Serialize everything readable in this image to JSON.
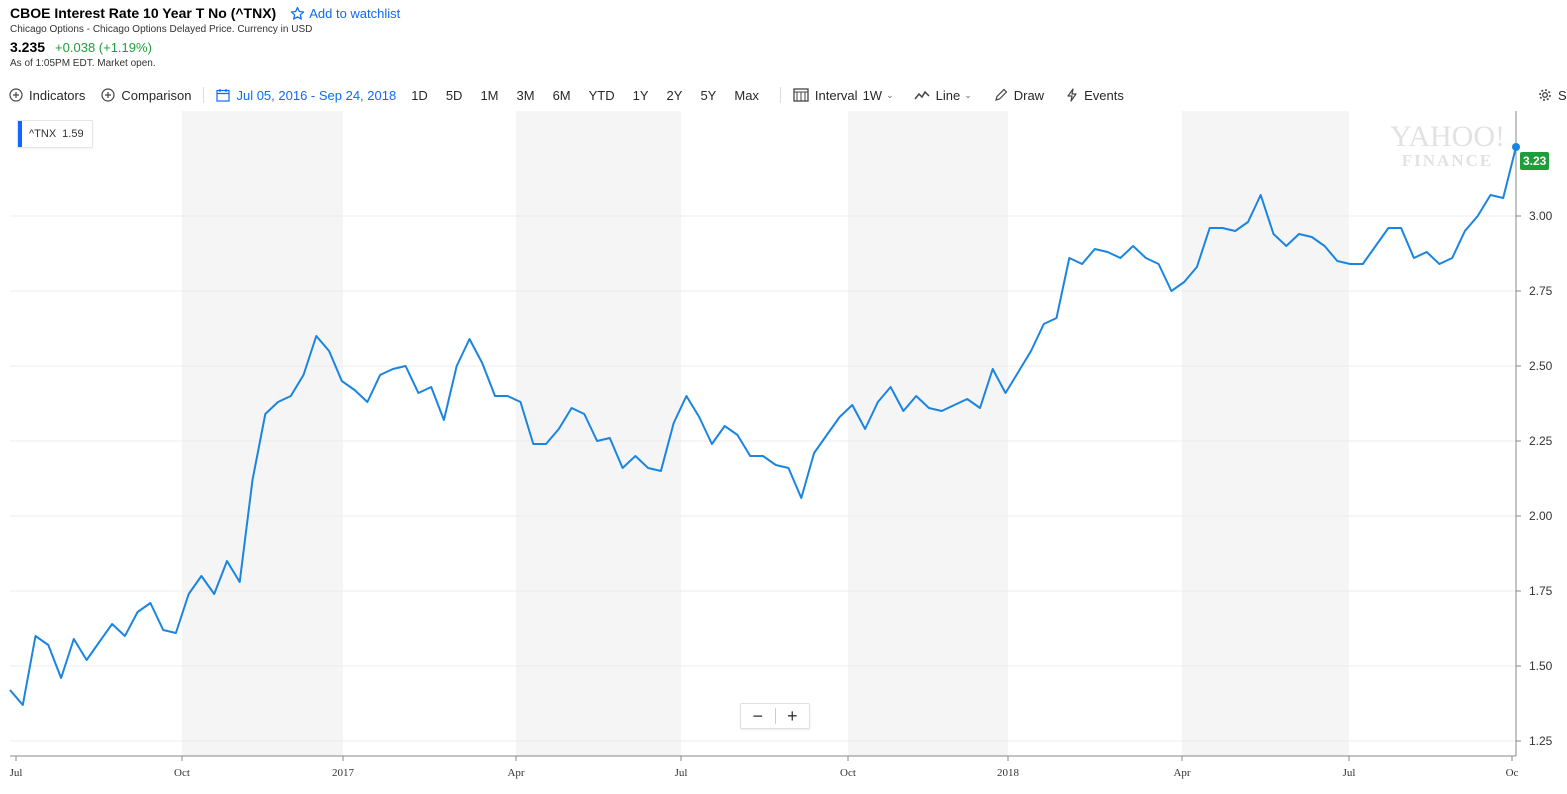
{
  "header": {
    "title": "CBOE Interest Rate 10 Year T No (^TNX)",
    "watchlist_label": "Add to watchlist",
    "subtitle": "Chicago Options - Chicago Options Delayed Price. Currency in USD",
    "price": "3.235",
    "change": "+0.038 (+1.19%)",
    "as_of": "As of 1:05PM EDT. Market open."
  },
  "toolbar": {
    "indicators": "Indicators",
    "comparison": "Comparison",
    "date_range": "Jul 05, 2016 - Sep 24, 2018",
    "ranges": [
      "1D",
      "5D",
      "1M",
      "3M",
      "6M",
      "YTD",
      "1Y",
      "2Y",
      "5Y",
      "Max"
    ],
    "interval_label": "Interval",
    "interval_value": "1W",
    "chart_type": "Line",
    "draw": "Draw",
    "events": "Events",
    "settings": "S"
  },
  "legend": {
    "symbol": "^TNX",
    "value": "1.59"
  },
  "watermark": {
    "line1": "YAHOO!",
    "line2": "FINANCE"
  },
  "last_value_badge": "3.23",
  "zoom": {
    "minus": "−",
    "plus": "+"
  },
  "colors": {
    "line": "#1a85e0",
    "accent": "#0f69ff",
    "positive": "#1e9e3a",
    "shade": "#f5f5f5"
  },
  "icons": [
    "plus-circle-icon",
    "calendar-icon",
    "interval-icon",
    "line-chart-icon",
    "pencil-icon",
    "lightning-icon",
    "gear-icon",
    "star-icon"
  ],
  "chart_data": {
    "type": "line",
    "ylim": [
      1.2,
      3.35
    ],
    "yticks": [
      "1.25",
      "1.50",
      "1.75",
      "2.00",
      "2.25",
      "2.50",
      "2.75",
      "3.00"
    ],
    "xticks": [
      "Jul",
      "Oct",
      "2017",
      "Apr",
      "Jul",
      "Oct",
      "2018",
      "Apr",
      "Jul",
      "Oc"
    ],
    "grid": true,
    "series": [
      {
        "values": [
          1.42,
          1.37,
          1.6,
          1.57,
          1.46,
          1.59,
          1.52,
          1.58,
          1.64,
          1.6,
          1.68,
          1.71,
          1.62,
          1.61,
          1.74,
          1.8,
          1.74,
          1.85,
          1.78,
          2.12,
          2.34,
          2.38,
          2.4,
          2.47,
          2.6,
          2.55,
          2.45,
          2.42,
          2.38,
          2.47,
          2.49,
          2.5,
          2.41,
          2.43,
          2.32,
          2.5,
          2.59,
          2.51,
          2.4,
          2.4,
          2.38,
          2.24,
          2.24,
          2.29,
          2.36,
          2.34,
          2.25,
          2.26,
          2.16,
          2.2,
          2.16,
          2.15,
          2.31,
          2.4,
          2.33,
          2.24,
          2.3,
          2.27,
          2.2,
          2.2,
          2.17,
          2.16,
          2.06,
          2.21,
          2.27,
          2.33,
          2.37,
          2.29,
          2.38,
          2.43,
          2.35,
          2.4,
          2.36,
          2.35,
          2.37,
          2.39,
          2.36,
          2.49,
          2.41,
          2.48,
          2.55,
          2.64,
          2.66,
          2.86,
          2.84,
          2.89,
          2.88,
          2.86,
          2.9,
          2.86,
          2.84,
          2.75,
          2.78,
          2.83,
          2.96,
          2.96,
          2.95,
          2.98,
          3.07,
          2.94,
          2.9,
          2.94,
          2.93,
          2.9,
          2.85,
          2.84,
          2.84,
          2.9,
          2.96,
          2.96,
          2.86,
          2.88,
          2.84,
          2.86,
          2.95,
          3.0,
          3.07,
          3.06,
          3.23
        ]
      }
    ]
  }
}
